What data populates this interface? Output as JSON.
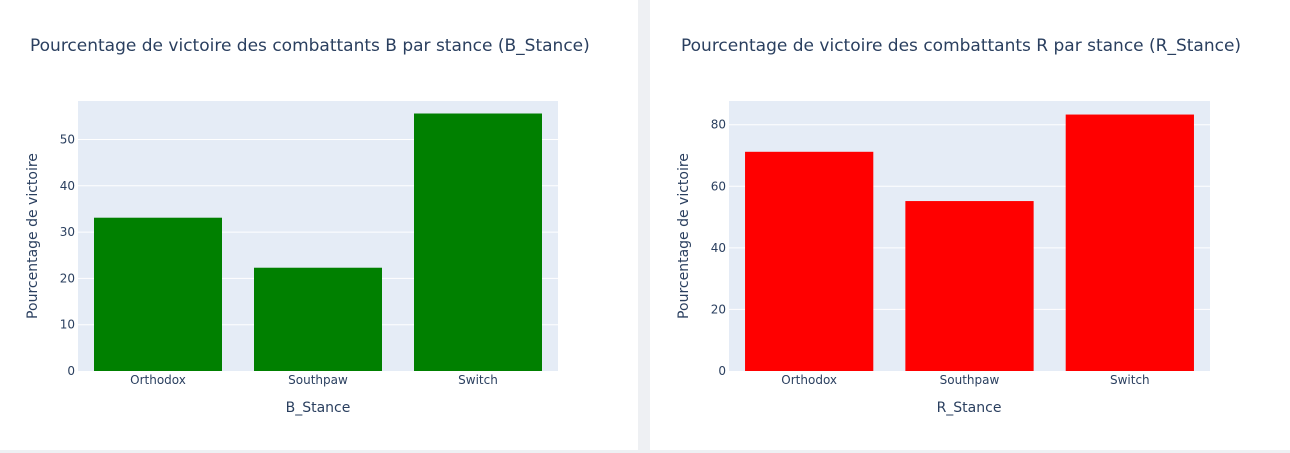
{
  "chart_data": [
    {
      "type": "bar",
      "title": "Pourcentage de victoire des combattants B par stance (B_Stance)",
      "xlabel": "B_Stance",
      "ylabel": "Pourcentage de victoire",
      "categories": [
        "Orthodox",
        "Southpaw",
        "Switch"
      ],
      "values": [
        33.1,
        22.3,
        55.6
      ],
      "ylim": [
        0,
        58.3
      ],
      "yticks": [
        0,
        10,
        20,
        30,
        40,
        50
      ],
      "bar_color": "#008000",
      "plot_bg": "#e5ecf6",
      "grid": true
    },
    {
      "type": "bar",
      "title": "Pourcentage de victoire des combattants R par stance (R_Stance)",
      "xlabel": "R_Stance",
      "ylabel": "Pourcentage de victoire",
      "categories": [
        "Orthodox",
        "Southpaw",
        "Switch"
      ],
      "values": [
        71.2,
        55.2,
        83.3
      ],
      "ylim": [
        0,
        87.7
      ],
      "yticks": [
        0,
        20,
        40,
        60,
        80
      ],
      "bar_color": "#ff0000",
      "plot_bg": "#e5ecf6",
      "grid": true
    }
  ]
}
